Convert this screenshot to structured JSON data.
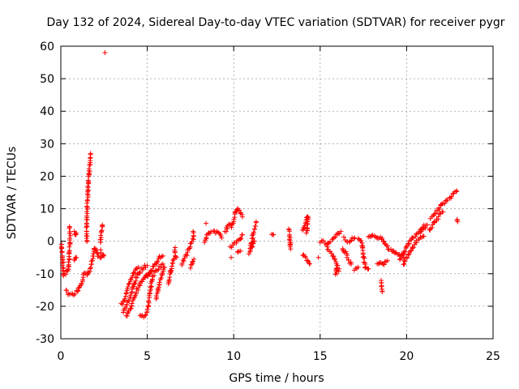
{
  "chart_data": {
    "type": "scatter",
    "title": "Day 132 of 2024, Sidereal Day-to-day VTEC variation (SDTVAR) for receiver pygr",
    "xlabel": "GPS time / hours",
    "ylabel": "SDTVAR / TECUs",
    "xlim": [
      0,
      25
    ],
    "ylim": [
      -30,
      60
    ],
    "xticks": [
      0,
      5,
      10,
      15,
      20,
      25
    ],
    "yticks": [
      -30,
      -20,
      -10,
      0,
      10,
      20,
      30,
      40,
      50,
      60
    ],
    "grid": true,
    "marker": "+",
    "color": "#ff0000",
    "segments": [
      [
        [
          0.05,
          -1.0
        ],
        [
          0.15,
          -10.5
        ],
        [
          0.3,
          -10.0
        ],
        [
          0.45,
          -8.5
        ],
        [
          0.5,
          -2.0
        ],
        [
          0.55,
          2.0
        ],
        [
          0.5,
          4.5
        ]
      ],
      [
        [
          0.3,
          -15.0
        ],
        [
          0.5,
          -16.5
        ],
        [
          0.7,
          -16.5
        ],
        [
          0.9,
          -15.5
        ],
        [
          1.1,
          -14.0
        ],
        [
          1.25,
          -12.0
        ],
        [
          1.35,
          -10.0
        ],
        [
          1.5,
          -10.5
        ],
        [
          1.7,
          -9.0
        ],
        [
          1.85,
          -5.0
        ],
        [
          1.95,
          -2.0
        ],
        [
          2.05,
          -3.0
        ],
        [
          2.2,
          -5.0
        ],
        [
          2.4,
          -4.5
        ]
      ],
      [
        [
          0.8,
          3.0
        ],
        [
          0.85,
          2.0
        ],
        [
          0.9,
          2.5
        ]
      ],
      [
        [
          0.8,
          -6.0
        ],
        [
          0.9,
          -5.0
        ]
      ],
      [
        [
          1.5,
          0.0
        ],
        [
          1.5,
          5.0
        ],
        [
          1.52,
          10.0
        ],
        [
          1.55,
          13.0
        ],
        [
          1.58,
          17.0
        ],
        [
          1.62,
          20.0
        ],
        [
          1.65,
          22.0
        ],
        [
          1.7,
          24.5
        ],
        [
          1.72,
          27.0
        ]
      ],
      [
        [
          2.3,
          0.0
        ],
        [
          2.35,
          3.0
        ],
        [
          2.4,
          5.0
        ]
      ],
      [
        [
          2.3,
          -3.0
        ],
        [
          2.5,
          -4.5
        ]
      ],
      [
        [
          2.55,
          58.0
        ]
      ],
      [
        [
          3.5,
          -19.5
        ],
        [
          3.7,
          -18.0
        ],
        [
          3.9,
          -14.0
        ],
        [
          4.1,
          -11.0
        ],
        [
          4.3,
          -9.0
        ],
        [
          4.5,
          -8.0
        ]
      ],
      [
        [
          3.6,
          -21.5
        ],
        [
          3.8,
          -20.0
        ],
        [
          4.0,
          -17.0
        ],
        [
          4.2,
          -14.0
        ],
        [
          4.4,
          -11.0
        ],
        [
          4.6,
          -9.0
        ],
        [
          4.8,
          -8.0
        ],
        [
          5.0,
          -7.5
        ]
      ],
      [
        [
          3.8,
          -23.0
        ],
        [
          4.0,
          -21.0
        ],
        [
          4.2,
          -18.0
        ],
        [
          4.4,
          -15.0
        ],
        [
          4.6,
          -13.0
        ],
        [
          4.8,
          -11.5
        ],
        [
          5.0,
          -10.5
        ],
        [
          5.2,
          -9.0
        ]
      ],
      [
        [
          4.6,
          -22.5
        ],
        [
          4.8,
          -23.0
        ],
        [
          5.0,
          -22.0
        ],
        [
          5.1,
          -18.0
        ],
        [
          5.2,
          -14.0
        ],
        [
          5.3,
          -11.0
        ],
        [
          5.5,
          -9.0
        ],
        [
          5.7,
          -8.0
        ],
        [
          5.9,
          -7.0
        ]
      ],
      [
        [
          4.9,
          -11.0
        ],
        [
          5.1,
          -10.0
        ],
        [
          5.3,
          -8.5
        ],
        [
          5.5,
          -6.5
        ],
        [
          5.7,
          -5.0
        ],
        [
          5.9,
          -4.5
        ]
      ],
      [
        [
          5.5,
          -18.0
        ],
        [
          5.6,
          -16.0
        ],
        [
          5.7,
          -13.0
        ],
        [
          5.8,
          -11.0
        ],
        [
          5.9,
          -9.0
        ],
        [
          6.0,
          -8.0
        ]
      ],
      [
        [
          6.2,
          -13.0
        ],
        [
          6.3,
          -11.0
        ],
        [
          6.4,
          -8.0
        ],
        [
          6.5,
          -6.0
        ],
        [
          6.6,
          -4.5
        ],
        [
          6.7,
          -5.0
        ]
      ],
      [
        [
          6.6,
          -2.0
        ],
        [
          6.6,
          -3.5
        ]
      ],
      [
        [
          7.0,
          -7.0
        ],
        [
          7.2,
          -5.0
        ],
        [
          7.4,
          -2.5
        ],
        [
          7.6,
          0.0
        ],
        [
          7.7,
          2.0
        ],
        [
          7.65,
          3.0
        ]
      ],
      [
        [
          7.5,
          -8.0
        ],
        [
          7.6,
          -7.0
        ],
        [
          7.7,
          -5.5
        ]
      ],
      [
        [
          8.3,
          0.0
        ],
        [
          8.5,
          2.0
        ],
        [
          8.7,
          3.0
        ],
        [
          8.9,
          3.0
        ],
        [
          9.1,
          2.5
        ],
        [
          9.3,
          1.0
        ]
      ],
      [
        [
          8.4,
          5.5
        ]
      ],
      [
        [
          9.5,
          3.0
        ],
        [
          9.7,
          5.0
        ],
        [
          9.9,
          4.5
        ],
        [
          10.0,
          7.0
        ],
        [
          10.1,
          9.0
        ],
        [
          10.2,
          10.0
        ],
        [
          10.4,
          9.0
        ],
        [
          10.5,
          7.5
        ]
      ],
      [
        [
          9.8,
          -2.0
        ],
        [
          10.0,
          -1.0
        ],
        [
          10.2,
          0.0
        ],
        [
          10.4,
          1.0
        ],
        [
          10.5,
          2.0
        ]
      ],
      [
        [
          10.2,
          -3.5
        ],
        [
          10.4,
          -3.0
        ]
      ],
      [
        [
          9.85,
          -5.0
        ]
      ],
      [
        [
          10.9,
          -3.5
        ],
        [
          11.0,
          -1.0
        ],
        [
          11.1,
          1.5
        ],
        [
          11.2,
          4.0
        ],
        [
          11.3,
          6.0
        ]
      ],
      [
        [
          11.0,
          -2.0
        ],
        [
          11.1,
          -1.0
        ],
        [
          11.2,
          0.0
        ]
      ],
      [
        [
          12.2,
          2.5
        ],
        [
          12.3,
          2.0
        ]
      ],
      [
        [
          13.2,
          4.0
        ],
        [
          13.3,
          -2.0
        ],
        [
          13.25,
          -0.5
        ]
      ],
      [
        [
          14.0,
          3.0
        ],
        [
          14.1,
          5.0
        ],
        [
          14.2,
          7.0
        ],
        [
          14.3,
          8.0
        ],
        [
          14.25,
          3.5
        ],
        [
          14.2,
          2.5
        ]
      ],
      [
        [
          14.0,
          -4.0
        ],
        [
          14.2,
          -5.5
        ],
        [
          14.4,
          -7.0
        ]
      ],
      [
        [
          14.9,
          -5.0
        ]
      ],
      [
        [
          15.0,
          -0.5
        ],
        [
          15.2,
          0.0
        ],
        [
          15.4,
          -1.0
        ],
        [
          15.6,
          0.0
        ],
        [
          15.8,
          1.0
        ],
        [
          16.0,
          2.0
        ],
        [
          16.2,
          3.0
        ]
      ],
      [
        [
          15.4,
          -2.0
        ],
        [
          15.6,
          -3.5
        ],
        [
          15.8,
          -5.0
        ],
        [
          16.0,
          -7.0
        ],
        [
          15.9,
          -10.0
        ],
        [
          16.1,
          -8.5
        ]
      ],
      [
        [
          16.3,
          -2.0
        ],
        [
          16.5,
          -4.0
        ],
        [
          16.7,
          -6.5
        ],
        [
          16.8,
          -7.0
        ]
      ],
      [
        [
          16.4,
          1.0
        ],
        [
          16.6,
          0.0
        ],
        [
          16.8,
          0.5
        ],
        [
          17.0,
          1.0
        ]
      ],
      [
        [
          17.2,
          1.0
        ],
        [
          17.4,
          0.0
        ],
        [
          17.5,
          -4.0
        ],
        [
          17.6,
          -8.0
        ],
        [
          17.8,
          -8.5
        ]
      ],
      [
        [
          17.0,
          -8.5
        ],
        [
          17.2,
          -8.0
        ]
      ],
      [
        [
          17.8,
          1.0
        ],
        [
          18.0,
          2.0
        ],
        [
          18.2,
          1.5
        ],
        [
          18.4,
          1.0
        ],
        [
          18.6,
          0.5
        ],
        [
          18.8,
          -1.0
        ],
        [
          19.0,
          -2.5
        ],
        [
          19.2,
          -3.0
        ],
        [
          19.4,
          -3.5
        ],
        [
          19.6,
          -4.0
        ],
        [
          19.8,
          -5.0
        ]
      ],
      [
        [
          18.3,
          -7.0
        ],
        [
          18.5,
          -6.5
        ],
        [
          18.7,
          -7.0
        ],
        [
          18.9,
          -6.0
        ]
      ],
      [
        [
          18.5,
          -12.0
        ],
        [
          18.55,
          -14.0
        ],
        [
          18.6,
          -15.5
        ]
      ],
      [
        [
          19.6,
          -5.5
        ],
        [
          19.8,
          -4.0
        ],
        [
          20.0,
          -2.0
        ],
        [
          20.2,
          0.0
        ],
        [
          20.4,
          1.5
        ],
        [
          20.6,
          2.5
        ],
        [
          20.8,
          3.5
        ],
        [
          21.0,
          5.0
        ]
      ],
      [
        [
          19.8,
          -7.0
        ],
        [
          20.0,
          -5.0
        ],
        [
          20.2,
          -3.0
        ],
        [
          20.4,
          -1.5
        ],
        [
          20.6,
          0.0
        ],
        [
          20.8,
          1.0
        ],
        [
          21.0,
          1.5
        ]
      ],
      [
        [
          20.8,
          3.0
        ],
        [
          21.0,
          4.0
        ],
        [
          21.2,
          5.0
        ]
      ],
      [
        [
          21.4,
          7.0
        ],
        [
          21.6,
          8.5
        ],
        [
          21.8,
          9.5
        ],
        [
          22.0,
          11.0
        ],
        [
          22.2,
          12.0
        ],
        [
          22.4,
          13.0
        ],
        [
          22.6,
          14.0
        ],
        [
          22.8,
          15.0
        ],
        [
          22.9,
          15.5
        ]
      ],
      [
        [
          21.3,
          3.5
        ],
        [
          21.5,
          5.0
        ],
        [
          21.7,
          6.5
        ],
        [
          21.9,
          8.0
        ],
        [
          22.1,
          9.0
        ]
      ],
      [
        [
          22.9,
          6.5
        ],
        [
          22.95,
          6.0
        ]
      ]
    ]
  }
}
